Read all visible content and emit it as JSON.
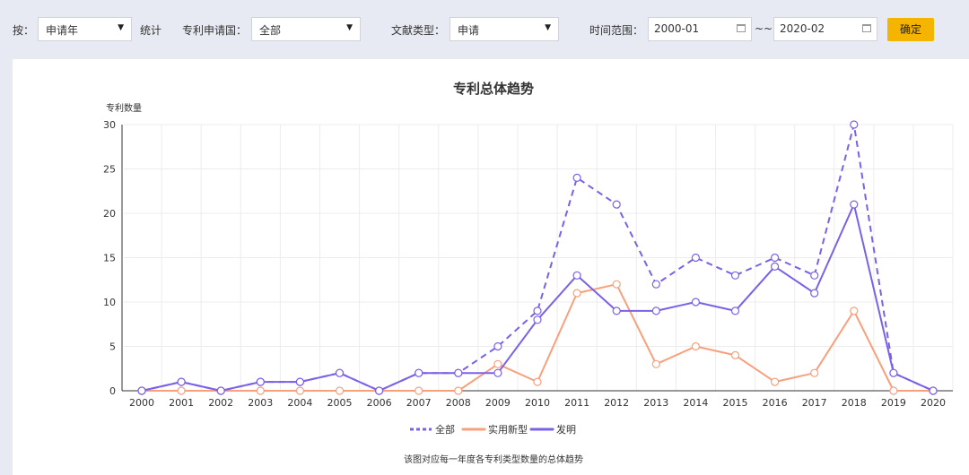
{
  "toolbar": {
    "by_label": "按：",
    "by_value": "申请年",
    "stat_label": "统计",
    "country_label": "专利申请国：",
    "country_value": "全部",
    "doctype_label": "文献类型：",
    "doctype_value": "申请",
    "range_label": "时间范围：",
    "range_start": "2000-01",
    "range_sep": "~~",
    "range_end": "2020-02",
    "confirm_label": "确定"
  },
  "caption": "该图对应每一年度各专利类型数量的总体趋势",
  "colors": {
    "all": "#7b61e8",
    "utility": "#f7a07c",
    "invention": "#7b61e8",
    "confirm_bg": "#f5b400"
  },
  "chart_data": {
    "type": "line",
    "title": "专利总体趋势",
    "ylabel": "专利数量",
    "xlabel": "",
    "ylim": [
      0,
      30
    ],
    "yticks": [
      "0",
      "5",
      "10",
      "15",
      "20",
      "25",
      "30"
    ],
    "categories": [
      "2000",
      "2001",
      "2002",
      "2003",
      "2004",
      "2005",
      "2006",
      "2007",
      "2008",
      "2009",
      "2010",
      "2011",
      "2012",
      "2013",
      "2014",
      "2015",
      "2016",
      "2017",
      "2018",
      "2019",
      "2020"
    ],
    "grid": true,
    "legend_position": "bottom",
    "series": [
      {
        "name": "全部",
        "style": "dashed",
        "values": [
          0,
          1,
          0,
          1,
          1,
          2,
          0,
          2,
          2,
          5,
          9,
          24,
          21,
          12,
          15,
          13,
          15,
          13,
          30,
          2,
          0
        ]
      },
      {
        "name": "实用新型",
        "style": "solid",
        "values": [
          0,
          0,
          0,
          0,
          0,
          0,
          0,
          0,
          0,
          3,
          1,
          11,
          12,
          3,
          5,
          4,
          1,
          2,
          9,
          0,
          0
        ]
      },
      {
        "name": "发明",
        "style": "solid",
        "values": [
          0,
          1,
          0,
          1,
          1,
          2,
          0,
          2,
          2,
          2,
          8,
          13,
          9,
          9,
          10,
          9,
          14,
          11,
          21,
          2,
          0
        ]
      }
    ]
  }
}
